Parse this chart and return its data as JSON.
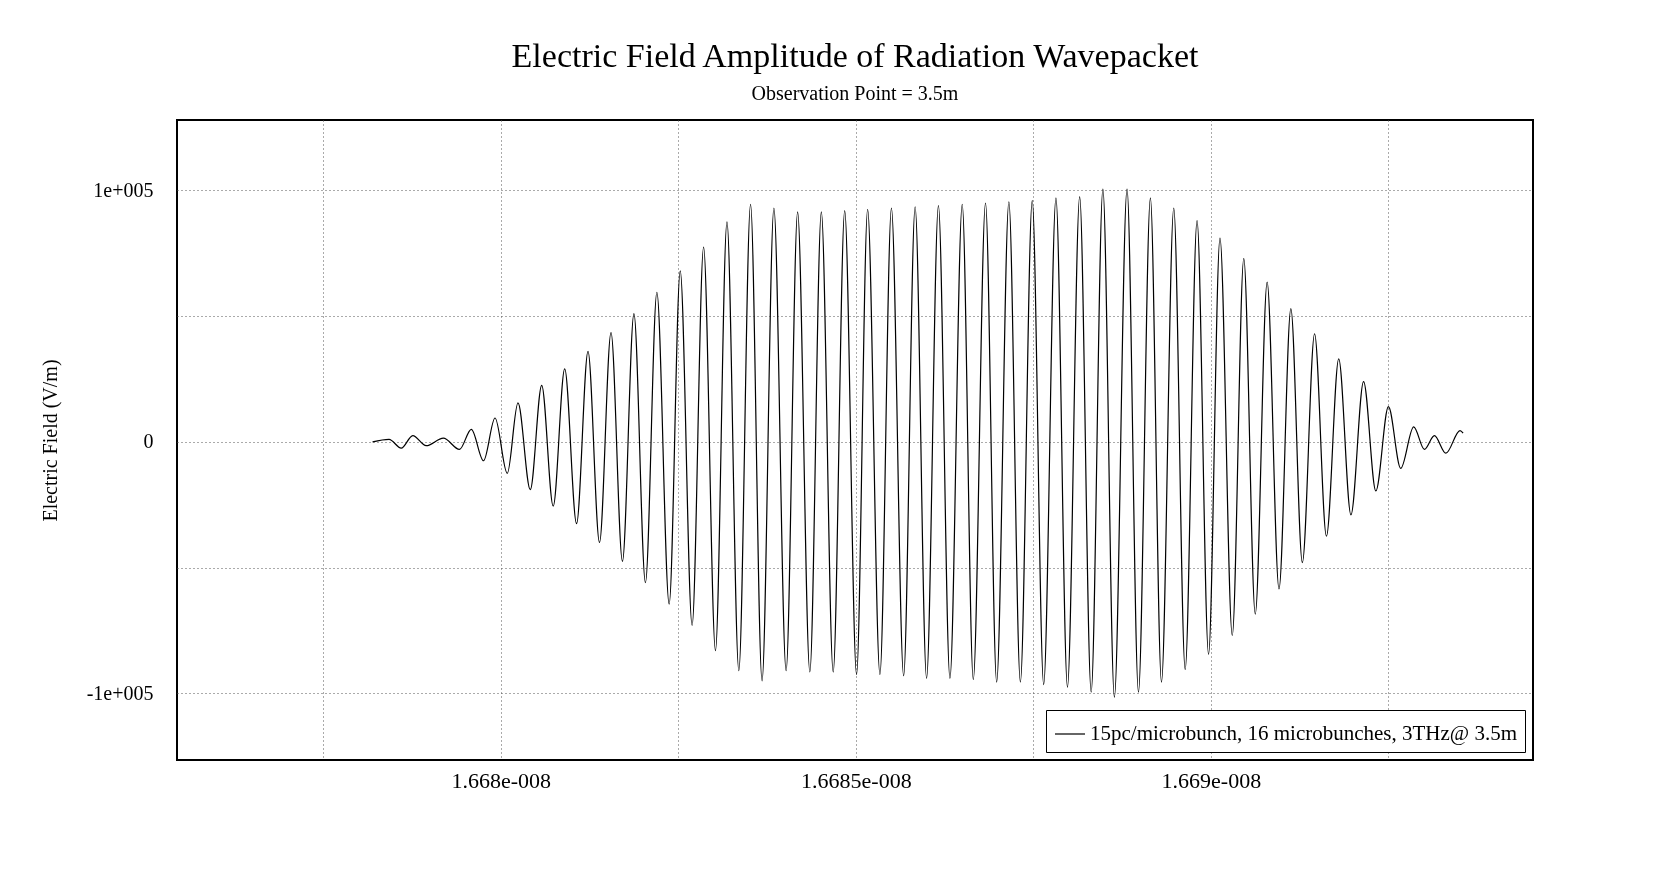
{
  "chart_data": {
    "type": "line",
    "title": "Electric Field Amplitude of Radiation Wavepacket",
    "subtitle": "Observation Point = 3.5m",
    "ylabel": "Electric Field (V/m)",
    "xlim": [
      1.667544e-08,
      1.6694536e-08
    ],
    "xticks": [
      {
        "value": 1.66775e-08,
        "label": null
      },
      {
        "value": 1.668e-08,
        "label": "1.668e-008"
      },
      {
        "value": 1.66825e-08,
        "label": null
      },
      {
        "value": 1.6685e-08,
        "label": "1.6685e-008"
      },
      {
        "value": 1.66875e-08,
        "label": null
      },
      {
        "value": 1.669e-08,
        "label": "1.669e-008"
      },
      {
        "value": 1.66925e-08,
        "label": null
      }
    ],
    "ylim": [
      -126500,
      128000
    ],
    "yticks": [
      {
        "value": -100000,
        "label": "-1e+005"
      },
      {
        "value": -50000,
        "label": null
      },
      0,
      {
        "value": 50000,
        "label": null
      },
      {
        "value": 100000,
        "label": "1e+005"
      }
    ],
    "grid": true,
    "legend": "bottom right",
    "line_style": "solid",
    "series": [
      {
        "name": "15pc/microbunch, 16 microbunches, 3THz@ 3.5m",
        "color": "#000000",
        "x": [
          1.6678194e-08,
          1.6678426e-08,
          1.6678598e-08,
          1.667876e-08,
          1.6678949e-08,
          1.6679191e-08,
          1.6679418e-08,
          1.6679585e-08,
          1.6679757e-08,
          1.6679919e-08,
          1.6680091e-08,
          1.6680242e-08,
          1.6680415e-08,
          1.6680576e-08,
          1.6680738e-08,
          1.66809e-08,
          1.6681067e-08,
          1.6681228e-08,
          1.668139e-08,
          1.6681552e-08,
          1.6681713e-08,
          1.6681875e-08,
          1.6682037e-08,
          1.6682198e-08,
          1.6682371e-08,
          1.6682527e-08,
          1.6682694e-08,
          1.6682856e-08,
          1.6683023e-08,
          1.6683185e-08,
          1.6683352e-08,
          1.6683517e-08,
          1.6683679e-08,
          1.6683846e-08,
          1.6684018e-08,
          1.668418e-08,
          1.6684352e-08,
          1.6684514e-08,
          1.6684681e-08,
          1.6684843e-08,
          1.668501e-08,
          1.6685166e-08,
          1.6685339e-08,
          1.6685501e-08,
          1.6685673e-08,
          1.6685835e-08,
          1.6685996e-08,
          1.6686163e-08,
          1.6686325e-08,
          1.6686498e-08,
          1.6686654e-08,
          1.6686826e-08,
          1.6686983e-08,
          1.6687155e-08,
          1.6687317e-08,
          1.6687484e-08,
          1.6687645e-08,
          1.6687818e-08,
          1.668798e-08,
          1.6688152e-08,
          1.6688314e-08,
          1.6688479e-08,
          1.6688641e-08,
          1.6688819e-08,
          1.668898e-08,
          1.6689148e-08,
          1.6689304e-08,
          1.6689477e-08,
          1.6689638e-08,
          1.6689805e-08,
          1.6689967e-08,
          1.6690128e-08,
          1.6690301e-08,
          1.6690463e-08,
          1.6690625e-08,
          1.6690792e-08,
          1.6690959e-08,
          1.6691126e-08,
          1.6691288e-08,
          1.669146e-08,
          1.6691627e-08,
          1.66918e-08,
          1.6691972e-08,
          1.669215e-08,
          1.6692323e-08,
          1.66925e-08,
          1.6692673e-08,
          1.6692856e-08,
          1.6693007e-08,
          1.6693147e-08,
          1.6693309e-08,
          1.6693508e-08,
          1.6693552e-08
        ],
        "values": [
          0,
          1000,
          -2500,
          2500,
          -1500,
          1500,
          -3000,
          5000,
          -7500,
          9500,
          -12500,
          15500,
          -19000,
          22500,
          -25500,
          29000,
          -32500,
          36000,
          -40000,
          43500,
          -47500,
          51000,
          -56000,
          59500,
          -64500,
          68000,
          -73000,
          77500,
          -83000,
          87500,
          -91000,
          94500,
          -95000,
          93000,
          -91000,
          91500,
          -91500,
          91500,
          -91500,
          92000,
          -92500,
          92500,
          -92500,
          93000,
          -93000,
          93500,
          -94000,
          94000,
          -94000,
          94500,
          -94500,
          95000,
          -95500,
          95500,
          -95500,
          96000,
          -96500,
          97000,
          -97500,
          97500,
          -99500,
          100500,
          -101500,
          100500,
          -99500,
          97000,
          -95500,
          93000,
          -90500,
          88000,
          -84500,
          81000,
          -77000,
          73000,
          -68500,
          63500,
          -58500,
          53000,
          -48000,
          43000,
          -37500,
          33000,
          -29000,
          24000,
          -19500,
          14000,
          -10500,
          6000,
          -3000,
          2500,
          -4500,
          4500,
          3500
        ]
      }
    ]
  }
}
